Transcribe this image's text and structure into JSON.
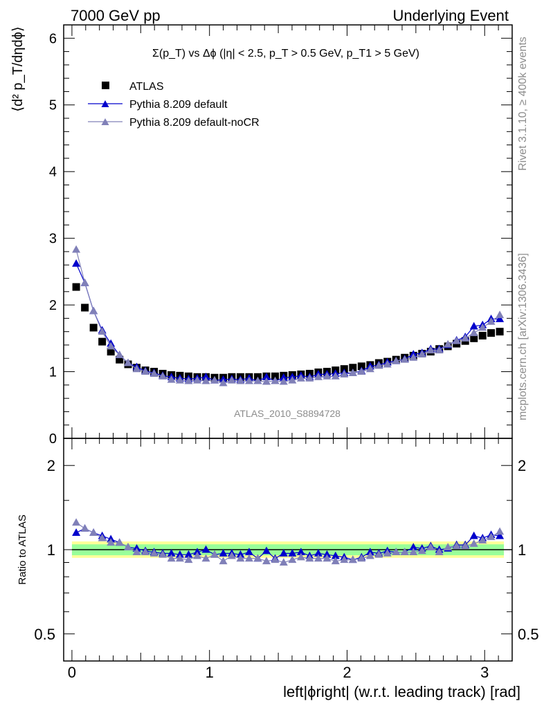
{
  "header": {
    "left": "7000 GeV pp",
    "right": "Underlying Event"
  },
  "side_labels": {
    "rivet": "Rivet 3.1.10, ≥ 400k events",
    "mcplots": "mcplots.cern.ch [arXiv:1306.3436]"
  },
  "main_plot": {
    "title": "Σ(p_T) vs Δϕ (|η| < 2.5, p_T > 0.5 GeV, p_T1 > 5 GeV)",
    "ylabel": "⟨d² p_T/dηdϕ⟩",
    "watermark": "ATLAS_2010_S8894728",
    "y_ticks": [
      "0",
      "1",
      "2",
      "3",
      "4",
      "5",
      "6"
    ]
  },
  "ratio_plot": {
    "ylabel": "Ratio to ATLAS",
    "y_ticks": [
      "0.5",
      "1",
      "2"
    ],
    "xlabel": "left|ϕright| (w.r.t. leading track) [rad]",
    "x_ticks": [
      "0",
      "1",
      "2",
      "3"
    ]
  },
  "legend": [
    {
      "label": "ATLAS",
      "marker": "square",
      "color": "#000000"
    },
    {
      "label": "Pythia 8.209 default",
      "marker": "triangle",
      "color": "#0000cc"
    },
    {
      "label": "Pythia 8.209 default-noCR",
      "marker": "triangle",
      "color": "#8080b8"
    }
  ],
  "chart_data": {
    "type": "scatter",
    "xlabel": "left|ϕright| (w.r.t. leading track) [rad]",
    "ylabel": "⟨d² p_T/dηdϕ⟩",
    "xlim": [
      -0.06,
      3.2
    ],
    "ylim": [
      0,
      6.2
    ],
    "ratio_ylim": [
      0.4,
      2.5
    ],
    "ratio_log_scale": true,
    "x": [
      0.031,
      0.094,
      0.157,
      0.22,
      0.283,
      0.346,
      0.408,
      0.471,
      0.534,
      0.597,
      0.66,
      0.723,
      0.785,
      0.848,
      0.911,
      0.974,
      1.037,
      1.1,
      1.162,
      1.225,
      1.288,
      1.351,
      1.414,
      1.477,
      1.539,
      1.602,
      1.665,
      1.728,
      1.791,
      1.854,
      1.916,
      1.979,
      2.042,
      2.105,
      2.168,
      2.231,
      2.293,
      2.356,
      2.419,
      2.482,
      2.545,
      2.608,
      2.67,
      2.733,
      2.796,
      2.859,
      2.922,
      2.985,
      3.047,
      3.11
    ],
    "series": [
      {
        "name": "ATLAS",
        "color": "#000000",
        "values": [
          2.27,
          1.96,
          1.66,
          1.45,
          1.3,
          1.18,
          1.11,
          1.06,
          1.02,
          1.0,
          0.97,
          0.95,
          0.94,
          0.93,
          0.92,
          0.92,
          0.91,
          0.91,
          0.92,
          0.92,
          0.92,
          0.92,
          0.93,
          0.93,
          0.94,
          0.95,
          0.96,
          0.97,
          0.99,
          1.0,
          1.02,
          1.04,
          1.06,
          1.08,
          1.1,
          1.13,
          1.15,
          1.18,
          1.21,
          1.24,
          1.27,
          1.3,
          1.34,
          1.38,
          1.42,
          1.46,
          1.5,
          1.54,
          1.58,
          1.6
        ],
        "ratio": [
          1,
          1,
          1,
          1,
          1,
          1,
          1,
          1,
          1,
          1,
          1,
          1,
          1,
          1,
          1,
          1,
          1,
          1,
          1,
          1,
          1,
          1,
          1,
          1,
          1,
          1,
          1,
          1,
          1,
          1,
          1,
          1,
          1,
          1,
          1,
          1,
          1,
          1,
          1,
          1,
          1,
          1,
          1,
          1,
          1,
          1,
          1,
          1,
          1,
          1
        ]
      },
      {
        "name": "Pythia 8.209 default",
        "color": "#0000cc",
        "values": [
          2.62,
          2.33,
          1.91,
          1.62,
          1.42,
          1.25,
          1.13,
          1.07,
          1.01,
          0.98,
          0.94,
          0.92,
          0.9,
          0.89,
          0.9,
          0.92,
          0.87,
          0.88,
          0.89,
          0.88,
          0.9,
          0.86,
          0.92,
          0.86,
          0.91,
          0.92,
          0.94,
          0.92,
          0.96,
          0.96,
          0.97,
          0.98,
          0.98,
          1.01,
          1.08,
          1.1,
          1.14,
          1.16,
          1.19,
          1.26,
          1.28,
          1.34,
          1.34,
          1.4,
          1.47,
          1.52,
          1.68,
          1.7,
          1.79,
          1.79
        ],
        "ratio": [
          1.15,
          1.19,
          1.15,
          1.12,
          1.09,
          1.06,
          1.02,
          1.01,
          0.99,
          0.98,
          0.97,
          0.97,
          0.96,
          0.96,
          0.98,
          1.0,
          0.96,
          0.97,
          0.97,
          0.96,
          0.98,
          0.93,
          0.99,
          0.93,
          0.97,
          0.97,
          0.98,
          0.95,
          0.97,
          0.96,
          0.95,
          0.94,
          0.92,
          0.94,
          0.98,
          0.97,
          0.99,
          0.98,
          0.98,
          1.02,
          1.01,
          1.03,
          1.0,
          1.01,
          1.04,
          1.04,
          1.12,
          1.1,
          1.13,
          1.12
        ]
      },
      {
        "name": "Pythia 8.209 default-noCR",
        "color": "#8080b8",
        "values": [
          2.83,
          2.33,
          1.91,
          1.6,
          1.38,
          1.25,
          1.13,
          1.04,
          1.0,
          0.97,
          0.93,
          0.88,
          0.87,
          0.86,
          0.87,
          0.86,
          0.87,
          0.83,
          0.87,
          0.86,
          0.86,
          0.86,
          0.85,
          0.86,
          0.85,
          0.87,
          0.9,
          0.9,
          0.92,
          0.93,
          0.93,
          0.96,
          0.98,
          1.0,
          1.04,
          1.09,
          1.11,
          1.16,
          1.18,
          1.21,
          1.26,
          1.32,
          1.32,
          1.41,
          1.46,
          1.5,
          1.58,
          1.66,
          1.75,
          1.85
        ],
        "ratio": [
          1.25,
          1.19,
          1.15,
          1.1,
          1.06,
          1.06,
          1.02,
          0.98,
          0.98,
          0.97,
          0.96,
          0.93,
          0.93,
          0.92,
          0.95,
          0.93,
          0.96,
          0.91,
          0.95,
          0.93,
          0.93,
          0.93,
          0.91,
          0.92,
          0.9,
          0.92,
          0.94,
          0.93,
          0.93,
          0.93,
          0.91,
          0.92,
          0.92,
          0.93,
          0.95,
          0.96,
          0.97,
          0.98,
          0.98,
          0.98,
          0.99,
          1.02,
          0.98,
          1.02,
          1.03,
          1.03,
          1.05,
          1.08,
          1.11,
          1.16
        ]
      }
    ]
  }
}
